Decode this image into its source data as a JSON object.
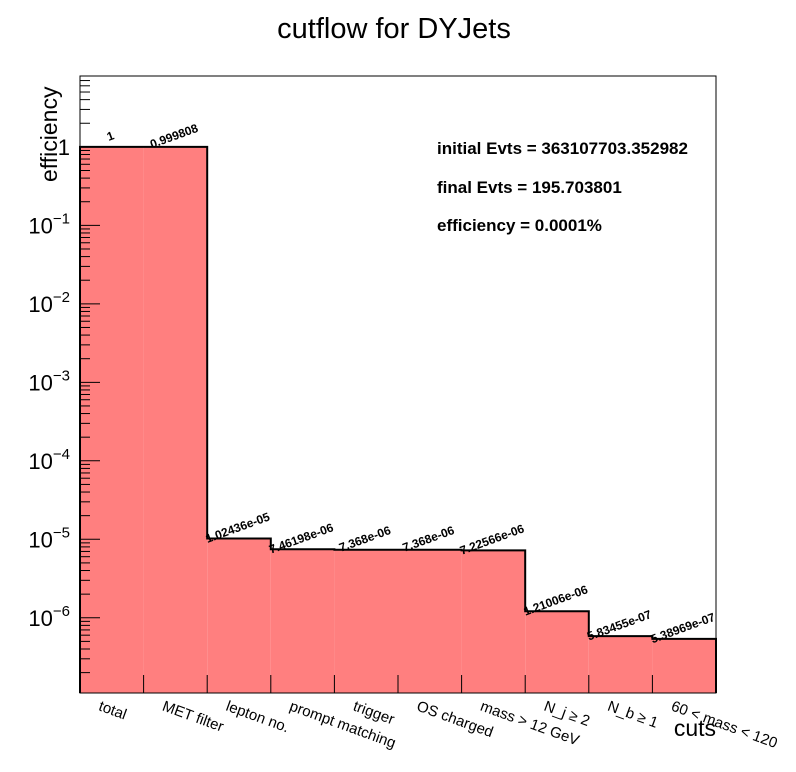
{
  "chart_data": {
    "type": "bar",
    "title": "cutflow for DYJets",
    "xlabel": "cuts",
    "ylabel": "efficiency",
    "yscale": "log",
    "ylim": [
      1.1e-07,
      8
    ],
    "grid": false,
    "fill_color": "#ff7f7f",
    "line_color": "#000000",
    "categories": [
      "total",
      "MET filter",
      "lepton no.",
      "prompt matching",
      "trigger",
      "OS charged",
      "mass > 12 GeV",
      "N_j ≥ 2",
      "N_b ≥ 1",
      "60 < mass < 120"
    ],
    "values": [
      1,
      0.999808,
      1.02436e-05,
      7.46198e-06,
      7.368e-06,
      7.368e-06,
      7.22566e-06,
      1.21006e-06,
      5.83455e-07,
      5.38969e-07
    ],
    "value_labels": [
      "1",
      "0.999808",
      "1.02436e-05",
      "7.46198e-06",
      "7.368e-06",
      "7.368e-06",
      "7.22566e-06",
      "1.21006e-06",
      "5.83455e-07",
      "5.38969e-07"
    ],
    "y_ticks": [
      {
        "value": 1e-06,
        "base": "10",
        "exp": "−6"
      },
      {
        "value": 1e-05,
        "base": "10",
        "exp": "−5"
      },
      {
        "value": 0.0001,
        "base": "10",
        "exp": "−4"
      },
      {
        "value": 0.001,
        "base": "10",
        "exp": "−3"
      },
      {
        "value": 0.01,
        "base": "10",
        "exp": "−2"
      },
      {
        "value": 0.1,
        "base": "10",
        "exp": "−1"
      },
      {
        "value": 1,
        "base": "1",
        "exp": ""
      }
    ],
    "annotations": [
      "initial Evts = 363107703.352982",
      "final Evts = 195.703801",
      "efficiency = 0.0001%"
    ]
  }
}
